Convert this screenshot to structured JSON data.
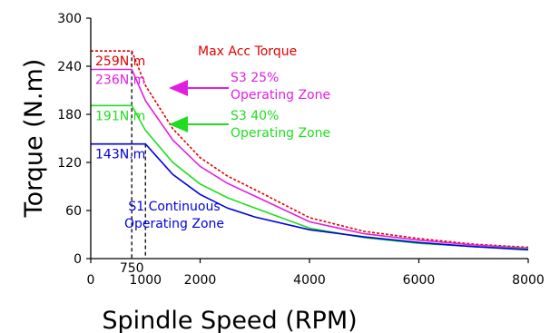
{
  "chart_data": {
    "type": "line",
    "xlabel": "Spindle Speed (RPM)",
    "ylabel": "Torque (N.m)",
    "xlim": [
      0,
      8000
    ],
    "ylim": [
      0,
      300
    ],
    "x_ticks": [
      0,
      2000,
      4000,
      6000,
      8000
    ],
    "x_tick_labels": [
      "0",
      "2000",
      "4000",
      "6000",
      "8000"
    ],
    "x_extra_ticks": [
      750,
      1000
    ],
    "x_extra_tick_labels": [
      "750",
      "1000"
    ],
    "y_ticks": [
      0,
      60,
      120,
      180,
      240,
      300
    ],
    "y_tick_labels": [
      "0",
      "60",
      "120",
      "180",
      "240",
      "300"
    ],
    "grid": false,
    "series": [
      {
        "name": "Max Acc Torque",
        "color": "#e00000",
        "dashed": true,
        "points": [
          [
            0,
            259
          ],
          [
            750,
            259
          ],
          [
            1000,
            216
          ],
          [
            1500,
            162
          ],
          [
            2000,
            126
          ],
          [
            2500,
            103
          ],
          [
            3000,
            86
          ],
          [
            4000,
            51
          ],
          [
            5000,
            34
          ],
          [
            6000,
            25
          ],
          [
            7000,
            18
          ],
          [
            8000,
            14
          ]
        ]
      },
      {
        "name": "S3 25% Operating Zone",
        "color": "#e020e0",
        "dashed": false,
        "points": [
          [
            0,
            236
          ],
          [
            750,
            236
          ],
          [
            1000,
            197
          ],
          [
            1500,
            148
          ],
          [
            2000,
            115
          ],
          [
            2500,
            94
          ],
          [
            3000,
            78
          ],
          [
            4000,
            46
          ],
          [
            5000,
            31
          ],
          [
            6000,
            23
          ],
          [
            7000,
            17
          ],
          [
            8000,
            13
          ]
        ]
      },
      {
        "name": "S3 40% Operating Zone",
        "color": "#20dd20",
        "dashed": false,
        "points": [
          [
            0,
            191
          ],
          [
            750,
            191
          ],
          [
            1000,
            160
          ],
          [
            1500,
            120
          ],
          [
            2000,
            93
          ],
          [
            2500,
            76
          ],
          [
            3000,
            63
          ],
          [
            4000,
            38
          ],
          [
            5000,
            26
          ],
          [
            6000,
            19
          ],
          [
            7000,
            15
          ],
          [
            8000,
            12
          ]
        ]
      },
      {
        "name": "S1 Continuous Operating Zone",
        "color": "#0000e0",
        "dashed": false,
        "points": [
          [
            0,
            143
          ],
          [
            1000,
            143
          ],
          [
            1500,
            105
          ],
          [
            2000,
            80
          ],
          [
            2500,
            63
          ],
          [
            3000,
            52
          ],
          [
            4000,
            36
          ],
          [
            5000,
            27
          ],
          [
            6000,
            20
          ],
          [
            7000,
            15
          ],
          [
            8000,
            11
          ]
        ]
      }
    ],
    "value_labels": [
      {
        "text": "259N.m",
        "value": 259,
        "color": "#e00000"
      },
      {
        "text": "236N.m",
        "value": 236,
        "color": "#e020e0"
      },
      {
        "text": "191N.m",
        "value": 191,
        "color": "#20dd20"
      },
      {
        "text": "143N.m",
        "value": 143,
        "color": "#0000e0"
      }
    ],
    "annotations": {
      "max_acc": {
        "text": "Max Acc Torque",
        "color": "#e00000"
      },
      "s3_25": {
        "lines": [
          "S3 25%",
          "Operating Zone"
        ],
        "color": "#e020e0"
      },
      "s3_40": {
        "lines": [
          "S3 40%",
          "Operating Zone"
        ],
        "color": "#20dd20"
      },
      "s1": {
        "lines": [
          "S1 Continuous",
          "Operating Zone"
        ],
        "color": "#0000e0"
      }
    }
  }
}
